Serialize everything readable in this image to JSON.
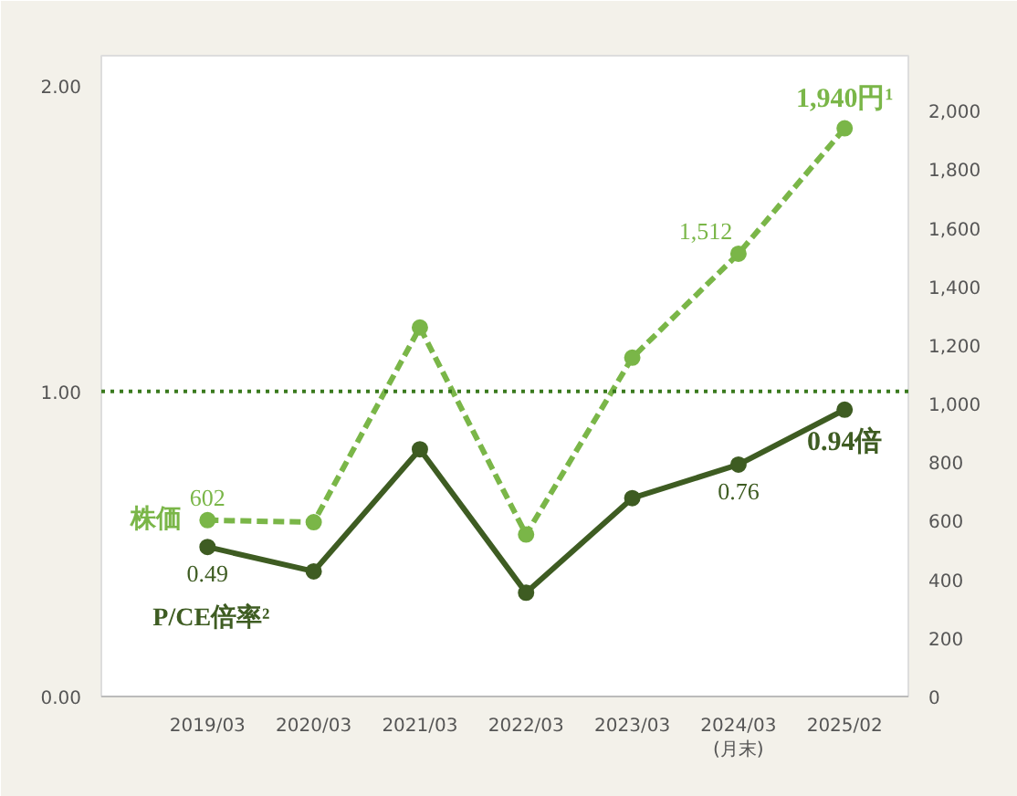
{
  "chart_data": {
    "type": "line",
    "categories": [
      "2019/03",
      "2020/03",
      "2021/03",
      "2022/03",
      "2023/03",
      "2024/03\n(月末)",
      "2025/02"
    ],
    "series": [
      {
        "name": "株価",
        "color": "#7ab648",
        "axis": "y2",
        "line_style": "dashed",
        "values": [
          602,
          595,
          1260,
          553,
          1157,
          1512,
          1940
        ],
        "value_labels": [
          "602",
          null,
          null,
          null,
          null,
          "1,512",
          "1,940円¹"
        ]
      },
      {
        "name": "P/CE倍率²",
        "color": "#3e5c22",
        "line_style": "solid",
        "values": [
          0.49,
          0.41,
          0.81,
          0.34,
          0.65,
          0.76,
          0.94
        ],
        "value_labels": [
          "0.49",
          null,
          null,
          null,
          null,
          "0.76",
          "0.94倍"
        ]
      }
    ],
    "ylim": [
      0,
      2.1
    ],
    "yticks": [
      {
        "value": 0,
        "label": "0.00"
      },
      {
        "value": 1,
        "label": "1.00"
      },
      {
        "value": 2,
        "label": "2.00"
      }
    ],
    "y2lim": [
      0,
      2188
    ],
    "y2ticks": [
      0,
      200,
      400,
      600,
      800,
      {
        "value": 1000,
        "label": "1,000"
      },
      {
        "value": 1200,
        "label": "1,200"
      },
      {
        "value": 1400,
        "label": "1,400"
      },
      {
        "value": 1600,
        "label": "1,600"
      },
      {
        "value": 1800,
        "label": "1,800"
      },
      {
        "value": 2000,
        "label": "2,000"
      }
    ],
    "ref_lines": [
      {
        "axis": "y",
        "value": 1,
        "color": "#3a7a1e",
        "line_style": "dotted"
      }
    ],
    "marker": "circle",
    "grid": false
  }
}
